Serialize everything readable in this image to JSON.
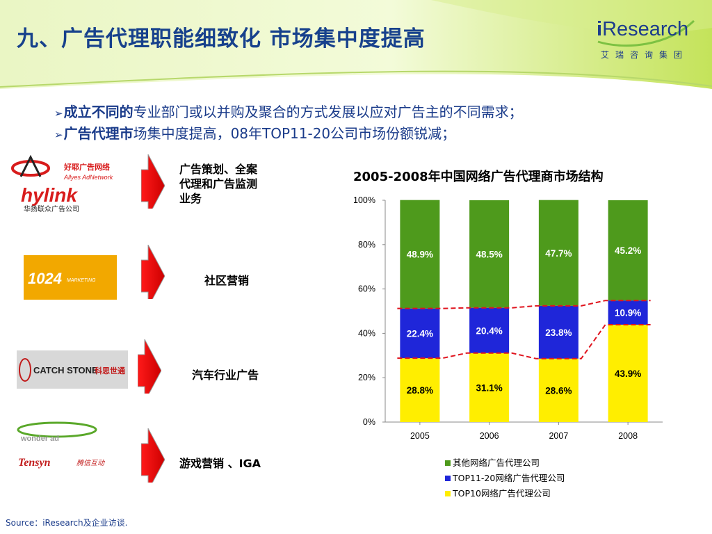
{
  "slide": {
    "title": "九、广告代理职能细致化 市场集中度提高"
  },
  "logo": {
    "brand_i": "i",
    "brand_rest": "Research",
    "cn": "艾瑞咨询集团"
  },
  "bullets": [
    {
      "bold": "成立不同的",
      "rest": "专业部门或以并购及聚合的方式发展以应对广告主的不同需求；"
    },
    {
      "bold": "广告代理市",
      "rest": "场集中度提高，08年TOP11-20公司市场份额锐减；"
    }
  ],
  "services": [
    {
      "line1": "广告策划、全案",
      "line2": "代理和广告监测",
      "line3": "业务"
    },
    {
      "line1": "社区营销"
    },
    {
      "line1": "汽车行业广告"
    },
    {
      "line1": "游戏营销 、IGA"
    }
  ],
  "company_logos": {
    "allyes_cn": "好耶广告网络",
    "allyes_en": "Allyes AdNetwork",
    "hylink": "hylink",
    "hylink_cn": "华扬联众广告公司",
    "p1024": "1024",
    "p1024_sub": "MARKETING",
    "catchstone": "CATCH STONE",
    "catchstone_cn": "科思世通",
    "wonder": "wonder ad",
    "tensyn": "Tensyn",
    "tensyn_cn": "腾信互动"
  },
  "chart_data": {
    "type": "bar",
    "stacked": true,
    "title": "2005-2008年中国网络广告代理商市场结构",
    "categories": [
      "2005",
      "2006",
      "2007",
      "2008"
    ],
    "ylim": [
      0,
      100
    ],
    "yticks": [
      "0%",
      "20%",
      "40%",
      "60%",
      "80%",
      "100%"
    ],
    "series": [
      {
        "name": "TOP10网络广告代理公司",
        "values": [
          28.8,
          31.1,
          28.6,
          43.9
        ],
        "labels": [
          "28.8%",
          "31.1%",
          "28.6%",
          "43.9%"
        ],
        "color": "#ffee00",
        "label_color": "#000000"
      },
      {
        "name": "TOP11-20网络广告代理公司",
        "values": [
          22.4,
          20.4,
          23.8,
          10.9
        ],
        "labels": [
          "22.4%",
          "20.4%",
          "23.8%",
          "10.9%"
        ],
        "color": "#1f26d9",
        "label_color": "#ffffff"
      },
      {
        "name": "其他网络广告代理公司",
        "values": [
          48.9,
          48.5,
          47.7,
          45.2
        ],
        "labels": [
          "48.9%",
          "48.5%",
          "47.7%",
          "45.2%"
        ],
        "color": "#4e9a1c",
        "label_color": "#ffffff"
      }
    ],
    "legend_order": [
      2,
      1,
      0
    ],
    "legend_position": "bottom",
    "guide_line_color": "#e0141e"
  },
  "source": "Source：iResearch及企业访谈."
}
